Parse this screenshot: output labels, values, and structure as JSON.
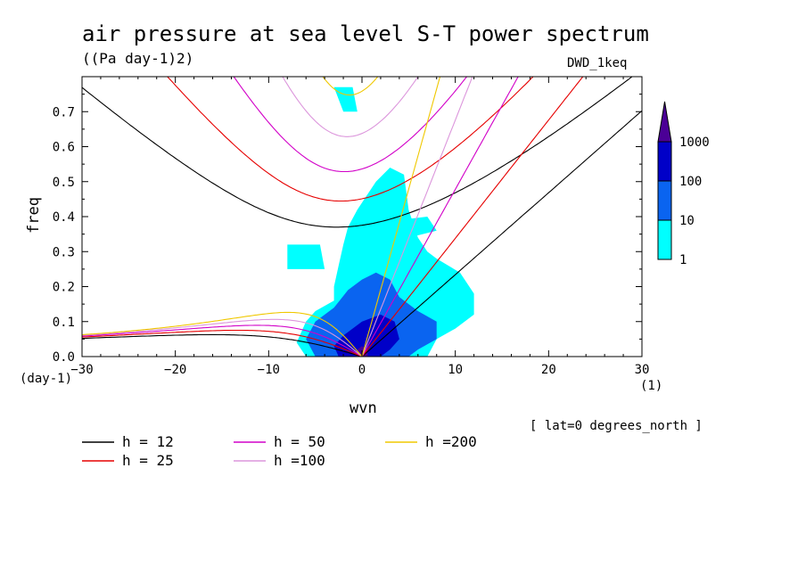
{
  "chart_data": {
    "type": "heatmap",
    "title": "air pressure at sea level S-T power spectrum",
    "subtitle": "((Pa day-1)2)",
    "dataset_label": "DWD_1keq",
    "xlabel": "wvn",
    "ylabel": "freq",
    "x_unit": "(1)",
    "y_unit": "(day-1)",
    "annotation": "[ lat=0 degrees_north ]",
    "xlim": [
      -30,
      30
    ],
    "ylim": [
      0,
      0.8
    ],
    "x_ticks": [
      -30,
      -20,
      -10,
      0,
      10,
      20,
      30
    ],
    "y_ticks": [
      0.0,
      0.1,
      0.2,
      0.3,
      0.4,
      0.5,
      0.6,
      0.7
    ],
    "y_tick_labels": [
      "0.0",
      "0.1",
      "0.2",
      "0.3",
      "0.4",
      "0.5",
      "0.6",
      "0.7"
    ],
    "colorbar": {
      "levels": [
        1,
        10,
        100,
        1000
      ],
      "level_labels": [
        "1",
        "10",
        "100",
        "1000"
      ],
      "colors": [
        "#00ffff",
        "#0a64f0",
        "#0000c8",
        "#4b0096"
      ]
    },
    "dispersion_curves": [
      {
        "name": "h = 12",
        "h": 12,
        "color": "#000000"
      },
      {
        "name": "h = 25",
        "h": 25,
        "color": "#e60000"
      },
      {
        "name": "h = 50",
        "h": 50,
        "color": "#d200c8"
      },
      {
        "name": "h =100",
        "h": 100,
        "color": "#dc96dc"
      },
      {
        "name": "h =200",
        "h": 200,
        "color": "#f0c800"
      }
    ],
    "spectrum_regions": [
      {
        "level": 1,
        "polygon": [
          [
            -6,
            0
          ],
          [
            -7,
            0.04
          ],
          [
            -6,
            0.1
          ],
          [
            -5,
            0.13
          ],
          [
            -3,
            0.16
          ],
          [
            -3,
            0.2
          ],
          [
            -2.5,
            0.26
          ],
          [
            -2,
            0.32
          ],
          [
            -1.5,
            0.37
          ],
          [
            -0.5,
            0.42
          ],
          [
            0.5,
            0.46
          ],
          [
            1.5,
            0.5
          ],
          [
            3,
            0.54
          ],
          [
            4.5,
            0.52
          ],
          [
            5,
            0.42
          ],
          [
            6,
            0.34
          ],
          [
            7,
            0.3
          ],
          [
            8,
            0.28
          ],
          [
            10.5,
            0.24
          ],
          [
            12,
            0.18
          ],
          [
            12,
            0.12
          ],
          [
            10,
            0.08
          ],
          [
            8,
            0.05
          ],
          [
            7,
            0
          ],
          [
            0,
            0
          ]
        ]
      },
      {
        "level": 1,
        "polygon": [
          [
            -3,
            0.77
          ],
          [
            -1,
            0.77
          ],
          [
            -0.5,
            0.7
          ],
          [
            -2,
            0.7
          ]
        ]
      },
      {
        "level": 1,
        "polygon": [
          [
            -8,
            0.32
          ],
          [
            -4.5,
            0.32
          ],
          [
            -4,
            0.25
          ],
          [
            -8,
            0.25
          ]
        ]
      },
      {
        "level": 1,
        "polygon": [
          [
            4,
            0.39
          ],
          [
            7,
            0.4
          ],
          [
            8,
            0.36
          ],
          [
            5,
            0.34
          ]
        ]
      },
      {
        "level": 10,
        "polygon": [
          [
            -5,
            0
          ],
          [
            -6,
            0.05
          ],
          [
            -5,
            0.1
          ],
          [
            -3,
            0.14
          ],
          [
            -1.5,
            0.19
          ],
          [
            0,
            0.22
          ],
          [
            1.5,
            0.24
          ],
          [
            3,
            0.22
          ],
          [
            4,
            0.17
          ],
          [
            6,
            0.13
          ],
          [
            8,
            0.1
          ],
          [
            8,
            0.05
          ],
          [
            6,
            0.02
          ],
          [
            5,
            0
          ],
          [
            0,
            0
          ]
        ]
      },
      {
        "level": 100,
        "polygon": [
          [
            -2.5,
            0
          ],
          [
            -3,
            0.03
          ],
          [
            -2,
            0.06
          ],
          [
            -1,
            0.08
          ],
          [
            0,
            0.1
          ],
          [
            2,
            0.12
          ],
          [
            3.5,
            0.1
          ],
          [
            4,
            0.05
          ],
          [
            3,
            0.02
          ],
          [
            2,
            0
          ],
          [
            0,
            0
          ]
        ]
      },
      {
        "level": 1000,
        "polygon": [
          [
            -0.6,
            0
          ],
          [
            -0.5,
            0.02
          ],
          [
            0,
            0.03
          ],
          [
            0.6,
            0.02
          ],
          [
            0.6,
            0
          ]
        ]
      }
    ]
  }
}
